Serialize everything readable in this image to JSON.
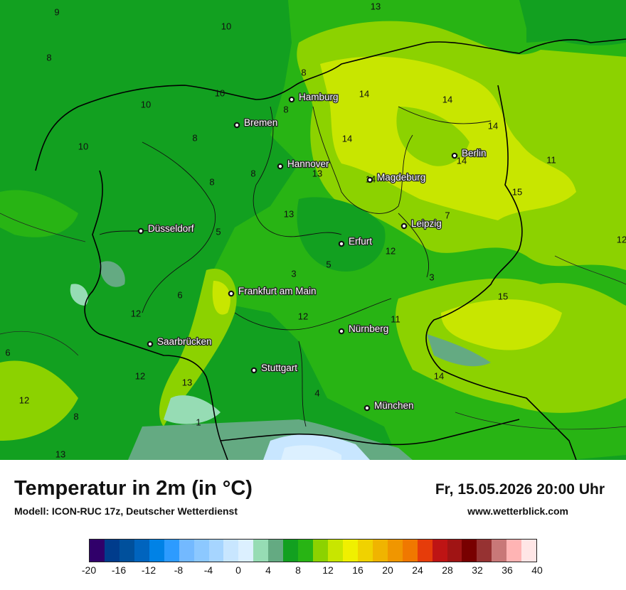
{
  "title": "Temperatur in 2m (in °C)",
  "model": "Modell: ICON-RUC 17z, Deutscher Wetterdienst",
  "datetime": "Fr, 15.05.2026 20:00 Uhr",
  "website": "www.wetterblick.com",
  "cities": [
    {
      "name": "Hamburg"
    },
    {
      "name": "Bremen"
    },
    {
      "name": "Hannover"
    },
    {
      "name": "Berlin"
    },
    {
      "name": "Magdeburg"
    },
    {
      "name": "Leipzig"
    },
    {
      "name": "Düsseldorf"
    },
    {
      "name": "Erfurt"
    },
    {
      "name": "Frankfurt am Main"
    },
    {
      "name": "Nürnberg"
    },
    {
      "name": "Saarbrücken"
    },
    {
      "name": "Stuttgart"
    },
    {
      "name": "München"
    }
  ],
  "isolabels": [
    "9",
    "13",
    "10",
    "8",
    "8",
    "8",
    "14",
    "14",
    "14",
    "10",
    "10",
    "8",
    "14",
    "10",
    "8",
    "14",
    "11",
    "13",
    "8",
    "14",
    "15",
    "13",
    "7",
    "12",
    "5",
    "12",
    "5",
    "3",
    "3",
    "15",
    "6",
    "12",
    "12",
    "11",
    "6",
    "12",
    "14",
    "13",
    "4",
    "12",
    "8",
    "1",
    "13"
  ],
  "legend": {
    "colors": [
      "#30006a",
      "#003c8c",
      "#00509c",
      "#0064be",
      "#0082e6",
      "#2d9bff",
      "#73b9ff",
      "#8cc8ff",
      "#a6d5ff",
      "#c8e6ff",
      "#dcf0ff",
      "#96dcb4",
      "#64aa82",
      "#12a020",
      "#28b414",
      "#8cd200",
      "#c8e600",
      "#f0f000",
      "#f0d200",
      "#f0b400",
      "#f09600",
      "#f07800",
      "#e63c0a",
      "#be1414",
      "#a01414",
      "#780000",
      "#963232",
      "#c87878",
      "#ffb4b4",
      "#ffe6e6"
    ],
    "ticks": [
      "-20",
      "-16",
      "-12",
      "-8",
      "-4",
      "0",
      "4",
      "8",
      "12",
      "16",
      "20",
      "24",
      "28",
      "32",
      "36",
      "40"
    ]
  }
}
